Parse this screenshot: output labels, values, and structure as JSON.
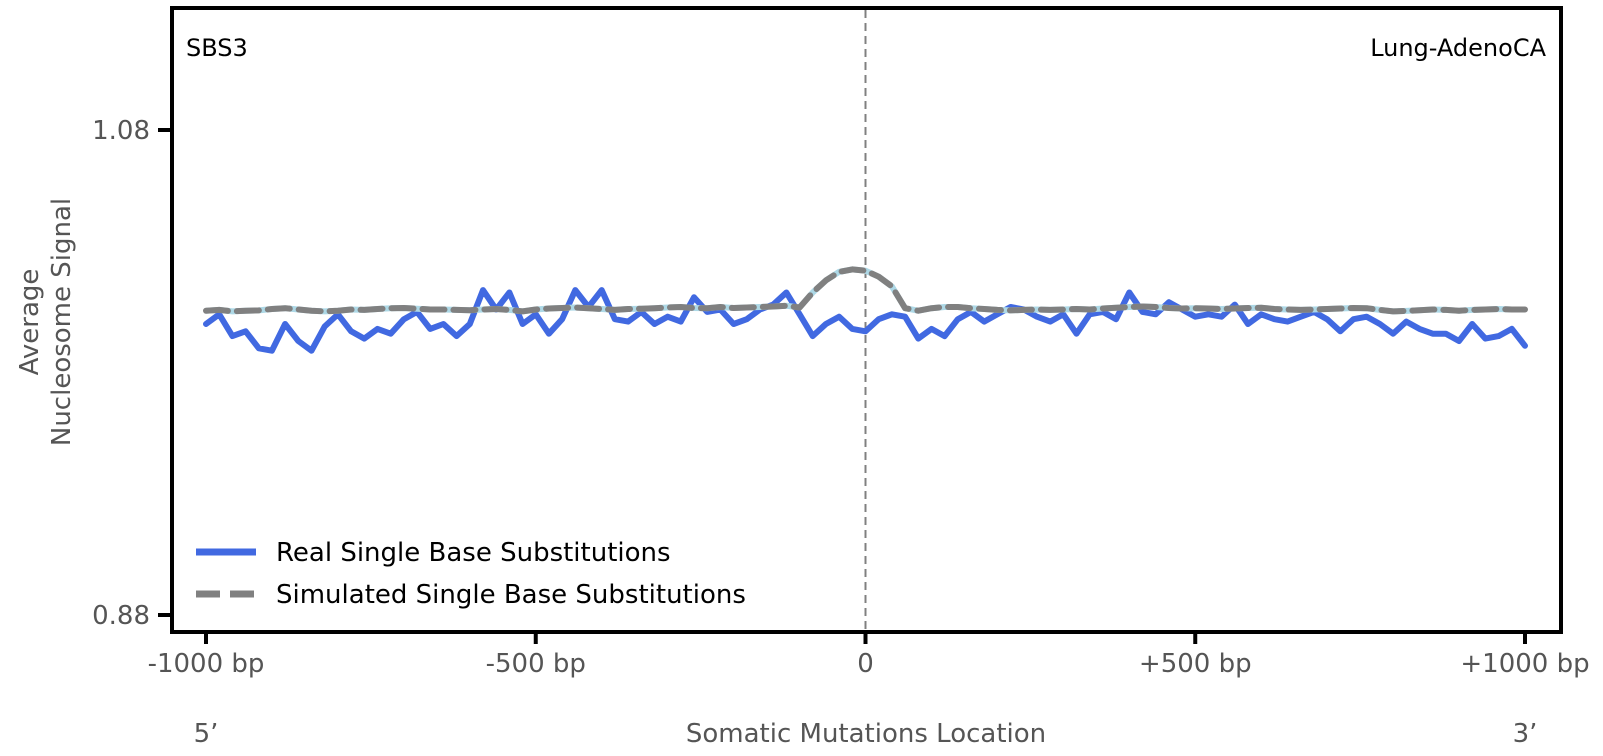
{
  "chart_data": {
    "type": "line",
    "title": "",
    "signature_label": "SBS3",
    "cancer_type_label": "Lung-AdenoCA",
    "xlabel": "Somatic Mutations Location",
    "ylabel_lines": [
      "Average",
      "Nucleosome Signal"
    ],
    "xlim": [
      -1000,
      1000
    ],
    "ylim": [
      0.87,
      1.13
    ],
    "x_ticks": [
      {
        "value": -1000,
        "label": "-1000 bp"
      },
      {
        "value": -500,
        "label": "-500 bp"
      },
      {
        "value": 0,
        "label": "0"
      },
      {
        "value": 500,
        "label": "+500 bp"
      },
      {
        "value": 1000,
        "label": "+1000 bp"
      }
    ],
    "y_ticks": [
      {
        "value": 0.88,
        "label": "0.88"
      },
      {
        "value": 1.08,
        "label": "1.08"
      }
    ],
    "strand_labels": {
      "left": "5’",
      "right": "3’"
    },
    "center_line_x": 0,
    "legend": {
      "placement": "lower-left",
      "entries": [
        {
          "label": "Real Single Base Substitutions",
          "style": "solid",
          "color": "#4169e1"
        },
        {
          "label": "Simulated Single Base Substitutions",
          "style": "dashed",
          "color": "#808080"
        }
      ]
    },
    "series": [
      {
        "name": "Real Single Base Substitutions",
        "color": "#4169e1",
        "style": "solid",
        "x": [
          -1000,
          -980,
          -960,
          -940,
          -920,
          -900,
          -880,
          -860,
          -840,
          -820,
          -800,
          -780,
          -760,
          -740,
          -720,
          -700,
          -680,
          -660,
          -640,
          -620,
          -600,
          -580,
          -560,
          -540,
          -520,
          -500,
          -480,
          -460,
          -440,
          -420,
          -400,
          -380,
          -360,
          -340,
          -320,
          -300,
          -280,
          -260,
          -240,
          -220,
          -200,
          -180,
          -160,
          -140,
          -120,
          -100,
          -80,
          -60,
          -40,
          -20,
          0,
          20,
          40,
          60,
          80,
          100,
          120,
          140,
          160,
          180,
          200,
          220,
          240,
          260,
          280,
          300,
          320,
          340,
          360,
          380,
          400,
          420,
          440,
          460,
          480,
          500,
          520,
          540,
          560,
          580,
          600,
          620,
          640,
          660,
          680,
          700,
          720,
          740,
          760,
          780,
          800,
          820,
          840,
          860,
          880,
          900,
          920,
          940,
          960,
          980,
          1000
        ],
        "values": [
          1.0,
          1.004,
          0.995,
          0.997,
          0.99,
          0.989,
          1.0,
          0.993,
          0.989,
          0.999,
          1.004,
          0.997,
          0.994,
          0.998,
          0.996,
          1.002,
          1.005,
          0.998,
          1.0,
          0.995,
          1.0,
          1.014,
          1.006,
          1.013,
          1.0,
          1.004,
          0.996,
          1.002,
          1.014,
          1.007,
          1.014,
          1.002,
          1.001,
          1.005,
          1.0,
          1.003,
          1.001,
          1.011,
          1.005,
          1.006,
          1.0,
          1.002,
          1.006,
          1.008,
          1.013,
          1.004,
          0.995,
          1.0,
          1.003,
          0.998,
          0.997,
          1.002,
          1.004,
          1.003,
          0.994,
          0.998,
          0.995,
          1.002,
          1.005,
          1.001,
          1.004,
          1.007,
          1.006,
          1.003,
          1.001,
          1.004,
          0.996,
          1.004,
          1.005,
          1.002,
          1.013,
          1.005,
          1.004,
          1.009,
          1.006,
          1.003,
          1.004,
          1.003,
          1.008,
          1.0,
          1.004,
          1.002,
          1.001,
          1.003,
          1.005,
          1.002,
          0.997,
          1.002,
          1.003,
          1.0,
          0.996,
          1.001,
          0.998,
          0.996,
          0.996,
          0.993,
          1.0,
          0.994,
          0.995,
          0.998,
          0.991
        ]
      },
      {
        "name": "Simulated Single Base Substitutions",
        "color": "#808080",
        "style": "dashed",
        "x": [
          -1000,
          -980,
          -960,
          -940,
          -920,
          -900,
          -880,
          -860,
          -840,
          -820,
          -800,
          -780,
          -760,
          -740,
          -720,
          -700,
          -680,
          -660,
          -640,
          -620,
          -600,
          -580,
          -560,
          -540,
          -520,
          -500,
          -480,
          -460,
          -440,
          -420,
          -400,
          -380,
          -360,
          -340,
          -320,
          -300,
          -280,
          -260,
          -240,
          -220,
          -200,
          -180,
          -160,
          -140,
          -120,
          -100,
          -80,
          -60,
          -40,
          -20,
          0,
          20,
          40,
          60,
          80,
          100,
          120,
          140,
          160,
          180,
          200,
          220,
          240,
          260,
          280,
          300,
          320,
          340,
          360,
          380,
          400,
          420,
          440,
          460,
          480,
          500,
          520,
          540,
          560,
          580,
          600,
          620,
          640,
          660,
          680,
          700,
          720,
          740,
          760,
          780,
          800,
          820,
          840,
          860,
          880,
          900,
          920,
          940,
          960,
          980,
          1000
        ],
        "values": [
          1.0055,
          1.0058,
          1.0052,
          1.0055,
          1.0056,
          1.0062,
          1.0065,
          1.006,
          1.0055,
          1.0052,
          1.0055,
          1.006,
          1.0058,
          1.0062,
          1.0065,
          1.0066,
          1.0063,
          1.006,
          1.006,
          1.0058,
          1.0057,
          1.006,
          1.0062,
          1.0058,
          1.0052,
          1.006,
          1.0064,
          1.0066,
          1.0068,
          1.0065,
          1.0062,
          1.0058,
          1.0062,
          1.0063,
          1.0065,
          1.0068,
          1.007,
          1.0066,
          1.0065,
          1.007,
          1.0066,
          1.0068,
          1.007,
          1.0072,
          1.0075,
          1.0068,
          1.013,
          1.018,
          1.0215,
          1.0225,
          1.022,
          1.0195,
          1.0155,
          1.0065,
          1.0055,
          1.0065,
          1.007,
          1.007,
          1.0065,
          1.0062,
          1.0058,
          1.0056,
          1.0058,
          1.006,
          1.0058,
          1.006,
          1.0062,
          1.006,
          1.0064,
          1.0067,
          1.007,
          1.0072,
          1.007,
          1.0066,
          1.0064,
          1.0065,
          1.0064,
          1.0062,
          1.0064,
          1.0066,
          1.0067,
          1.0062,
          1.006,
          1.0058,
          1.006,
          1.0062,
          1.0064,
          1.0066,
          1.0065,
          1.0058,
          1.0052,
          1.0054,
          1.0057,
          1.006,
          1.0058,
          1.0055,
          1.0058,
          1.006,
          1.0062,
          1.006,
          1.006
        ]
      }
    ]
  },
  "colors": {
    "real": "#4169e1",
    "simulated": "#808080",
    "simulated_alt": "#add8e6",
    "frame": "#000000",
    "center_line": "#808080",
    "tick_text": "#555555"
  }
}
